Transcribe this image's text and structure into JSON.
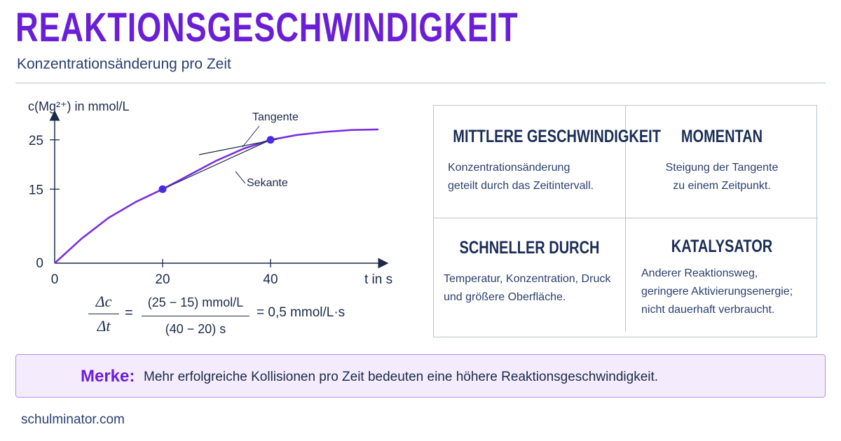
{
  "title": "REAKTIONSGESCHWINDIGKEIT",
  "subtitle": "Konzentrationsänderung pro Zeit",
  "chart_data": {
    "type": "line",
    "ylabel": "c(Mg²⁺) in mmol/L",
    "xlabel": "t in s",
    "x_ticks": [
      "0",
      "20",
      "40"
    ],
    "y_ticks": [
      "0",
      "15",
      "25"
    ],
    "xlim": [
      0,
      60
    ],
    "ylim": [
      0,
      30
    ],
    "series": [
      {
        "x": [
          0,
          5,
          10,
          15,
          20,
          25,
          30,
          35,
          40,
          45,
          50,
          55,
          60
        ],
        "y": [
          0,
          5.0,
          9.2,
          12.4,
          15.0,
          17.9,
          20.8,
          23.2,
          25.0,
          26.0,
          26.6,
          27.0,
          27.1
        ],
        "color": "#7b2fe0"
      }
    ],
    "points": [
      {
        "x": 20,
        "y": 15
      },
      {
        "x": 40,
        "y": 25
      }
    ],
    "secant_label": "Sekante",
    "tangent_label": "Tangente"
  },
  "formula": {
    "lhs_num": "Δc",
    "lhs_den": "Δt",
    "eq1": "=",
    "rhs_num": "(25 − 15)  mmol/L",
    "rhs_den": "(40 − 20)  s",
    "result": "= 0,5  mmol/L·s"
  },
  "cells": [
    {
      "title": "MITTLERE GESCHWINDIGKEIT",
      "lines": [
        "Konzentrationsänderung",
        "geteilt durch das Zeitintervall."
      ]
    },
    {
      "title": "MOMENTAN",
      "lines": [
        "Steigung der Tangente",
        "zu einem Zeitpunkt."
      ]
    },
    {
      "title": "SCHNELLER DURCH",
      "lines": [
        "Temperatur, Konzentration, Druck",
        "und größere Oberfläche."
      ]
    },
    {
      "title": "KATALYSATOR",
      "lines": [
        "Anderer Reaktionsweg,",
        "geringere Aktivierungsenergie;",
        "nicht dauerhaft verbraucht."
      ]
    }
  ],
  "merke": {
    "label": "Merke:",
    "text": "Mehr erfolgreiche Kollisionen pro Zeit bedeuten eine höhere Reaktionsgeschwindigkeit."
  },
  "footer": "schulminator.com",
  "colors": {
    "accent": "#6a1fd6",
    "curve": "#7b2fe0",
    "point": "#4a2be0",
    "text": "#1c2a4a"
  }
}
